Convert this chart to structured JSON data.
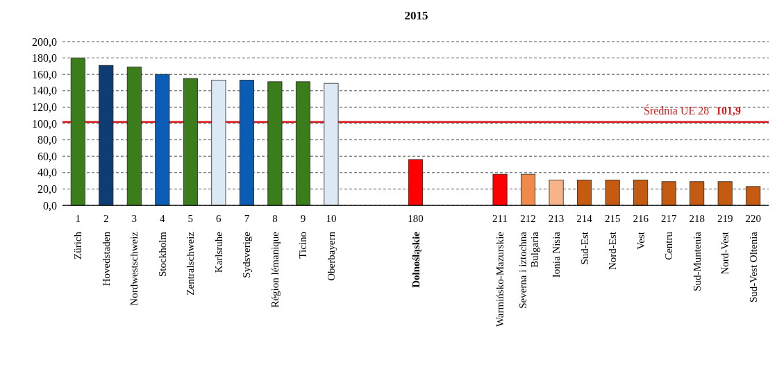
{
  "chart_data": {
    "type": "bar",
    "title": "2015",
    "categories": [
      "1 Zürich",
      "2 Hovedstaden",
      "3 Nordwestschweiz",
      "4 Stockholm",
      "5 Zentralschweiz",
      "6 Karlsruhe",
      "7 Sydsverige",
      "8 Région lémanique",
      "9 Ticino",
      "10 Oberbayern",
      null,
      null,
      "180 Dolnośląskie",
      null,
      null,
      "211 Warmińsko-Mazurskie",
      "212 Severna i iztochna Bulgaria",
      "213 Ionia Nisia",
      "214 Sud-Est",
      "215 Nord-Est",
      "216 Vest",
      "217 Centru",
      "218 Sud-Muntenia",
      "219 Nord-Vest",
      "220 Sud-Vest Oltenia"
    ],
    "values": [
      180,
      171,
      169,
      160,
      155,
      153,
      153,
      151,
      151,
      149,
      null,
      null,
      56,
      null,
      null,
      38,
      38,
      31,
      31,
      31,
      31,
      29,
      29,
      29,
      23
    ],
    "colors": [
      "#3a7d1a",
      "#0d3d73",
      "#3a7d1a",
      "#0a5cb5",
      "#3a7d1a",
      "#dce9f5",
      "#0a5cb5",
      "#3a7d1a",
      "#3a7d1a",
      "#dce9f5",
      null,
      null,
      "#ff0000",
      null,
      null,
      "#ff0000",
      "#f08a4b",
      "#f7b488",
      "#c55a11",
      "#c55a11",
      "#c55a11",
      "#c55a11",
      "#c55a11",
      "#c55a11",
      "#c55a11"
    ],
    "ylim": [
      0,
      200
    ],
    "yticks": [
      {
        "value": 0,
        "label": "0,0"
      },
      {
        "value": 20,
        "label": "20,0"
      },
      {
        "value": 40,
        "label": "40,0"
      },
      {
        "value": 60,
        "label": "60,0"
      },
      {
        "value": 80,
        "label": "80,0"
      },
      {
        "value": 100,
        "label": "100,0"
      },
      {
        "value": 120,
        "label": "120,0"
      },
      {
        "value": 140,
        "label": "140,0"
      },
      {
        "value": 160,
        "label": "160,0"
      },
      {
        "value": 180,
        "label": "180,0"
      },
      {
        "value": 200,
        "label": "200,0"
      }
    ],
    "grid": "y",
    "ref_lines": [
      {
        "axis": "y",
        "value": 101.9,
        "label": "Średnia UE 28 101,9",
        "color": "#d7191c"
      }
    ]
  }
}
